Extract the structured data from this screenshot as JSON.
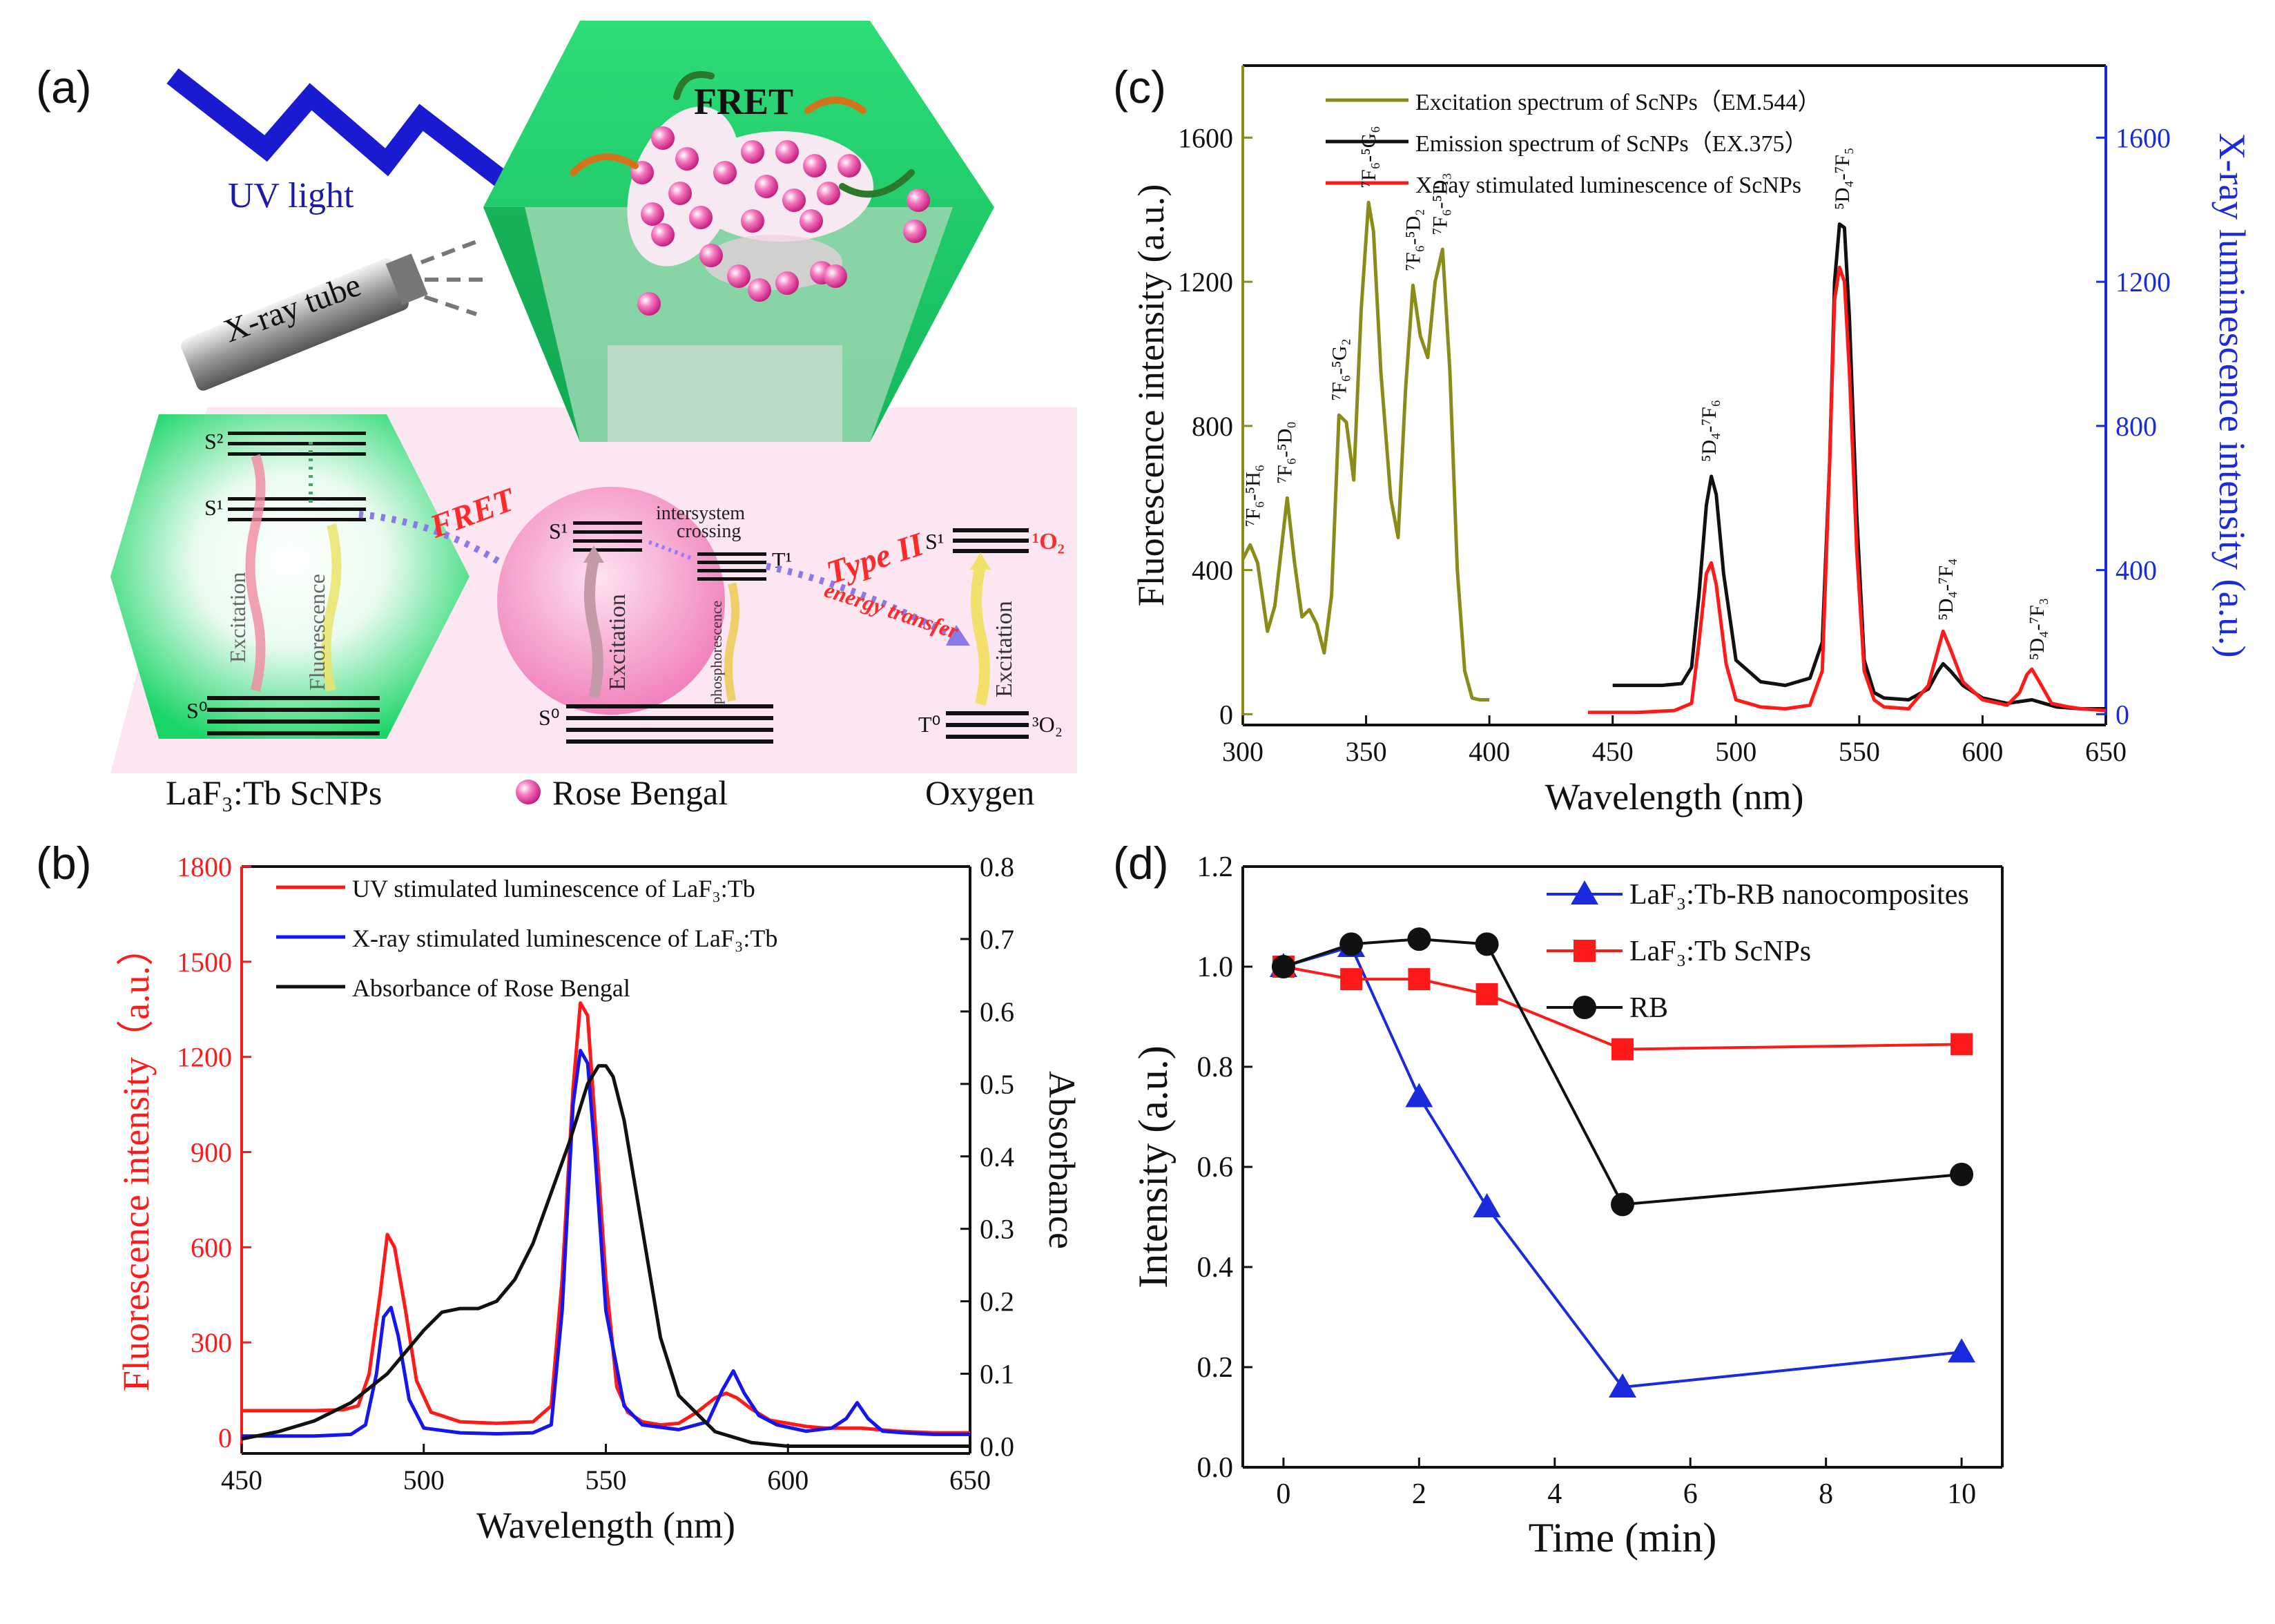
{
  "panel_labels": {
    "a": "(a)",
    "b": "(b)",
    "c": "(c)",
    "d": "(d)"
  },
  "diagram": {
    "uv_light": "UV light",
    "xray_tube": "X-ray tube",
    "fret_top": "FRET",
    "fret_arrow": "FRET",
    "s2": "S²",
    "s1": "S¹",
    "s0": "S⁰",
    "excitation": "Excitation",
    "fluorescence": "Fluorescence",
    "rb_s1": "S¹",
    "rb_t1": "T¹",
    "rb_s0": "S⁰",
    "isc_1": "intersystem",
    "isc_2": "crossing",
    "phosphorescence": "phosphorescence",
    "rb_excitation": "Excitation",
    "type2": "Type II",
    "energy_transfer": "energy transfer",
    "ox_s1": "S¹",
    "singlet_o2": "¹O₂",
    "ox_t0": "T⁰",
    "triplet_o2": "³O₂",
    "ox_excitation": "Excitation",
    "caption_laf3": "LaF₃:Tb ScNPs",
    "caption_rb": "Rose Bengal",
    "caption_oxygen": "Oxygen",
    "colors": {
      "green": "#1fd86a",
      "pink": "#f06fb0",
      "red": "#ff2a2a",
      "blue": "#1c1caa"
    }
  },
  "chart_data": [
    {
      "id": "b",
      "type": "line",
      "xlabel": "Wavelength (nm)",
      "ylabel": "Fluorescence intensity（a.u.）",
      "y2label": "Absorbance",
      "xlim": [
        450,
        650
      ],
      "ylim": [
        -50,
        1800
      ],
      "y2lim": [
        -0.01,
        0.8
      ],
      "xticks": [
        450,
        500,
        550,
        600,
        650
      ],
      "yticks": [
        0,
        300,
        600,
        900,
        1200,
        1500,
        1800
      ],
      "y2ticks": [
        0.0,
        0.1,
        0.2,
        0.3,
        0.4,
        0.5,
        0.6,
        0.7,
        0.8
      ],
      "series": [
        {
          "name": "UV stimulated luminescence of LaF₃:Tb",
          "color": "#ff1a1a",
          "axis": "left",
          "x": [
            450,
            470,
            478,
            482,
            485,
            488,
            490,
            492,
            495,
            498,
            502,
            510,
            520,
            530,
            535,
            538,
            541,
            543,
            545,
            547,
            550,
            553,
            556,
            560,
            565,
            570,
            575,
            580,
            583,
            586,
            590,
            595,
            600,
            605,
            610,
            615,
            620,
            625,
            630,
            640,
            650
          ],
          "y": [
            85,
            85,
            88,
            100,
            200,
            450,
            640,
            600,
            400,
            180,
            80,
            50,
            45,
            50,
            100,
            500,
            1100,
            1370,
            1330,
            1000,
            500,
            160,
            80,
            50,
            40,
            45,
            80,
            125,
            140,
            125,
            90,
            55,
            45,
            35,
            30,
            30,
            30,
            25,
            20,
            15,
            15
          ]
        },
        {
          "name": "X-ray stimulated luminescence of LaF₃:Tb",
          "color": "#1515ee",
          "axis": "left",
          "x": [
            450,
            470,
            480,
            484,
            487,
            489,
            491,
            493,
            496,
            500,
            510,
            520,
            530,
            535,
            538,
            541,
            543,
            545,
            547,
            550,
            555,
            560,
            570,
            578,
            582,
            585,
            588,
            592,
            597,
            605,
            612,
            616,
            619,
            622,
            626,
            632,
            640,
            650
          ],
          "y": [
            5,
            5,
            10,
            40,
            200,
            380,
            410,
            320,
            120,
            30,
            15,
            12,
            15,
            40,
            400,
            1050,
            1220,
            1180,
            900,
            400,
            100,
            40,
            25,
            50,
            150,
            210,
            140,
            70,
            40,
            20,
            30,
            60,
            110,
            60,
            20,
            15,
            10,
            10
          ]
        },
        {
          "name": "Absorbance of Rose Bengal",
          "color": "#111111",
          "axis": "right",
          "x": [
            450,
            460,
            470,
            480,
            490,
            500,
            505,
            510,
            515,
            520,
            525,
            530,
            535,
            540,
            545,
            548,
            550,
            552,
            555,
            560,
            565,
            570,
            580,
            590,
            600,
            610,
            620,
            650
          ],
          "y": [
            0.01,
            0.02,
            0.035,
            0.06,
            0.1,
            0.16,
            0.185,
            0.19,
            0.19,
            0.2,
            0.23,
            0.28,
            0.35,
            0.42,
            0.5,
            0.525,
            0.525,
            0.51,
            0.45,
            0.3,
            0.15,
            0.07,
            0.02,
            0.005,
            0.0,
            0.0,
            0.0,
            0.0
          ]
        }
      ]
    },
    {
      "id": "c",
      "type": "line",
      "xlabel": "Wavelength (nm)",
      "ylabel": "Fluorescence intensity (a.u.)",
      "y2label": "X-ray luminescence intensity (a.u.)",
      "xlim": [
        300,
        650
      ],
      "ylim": [
        -30,
        1800
      ],
      "y2lim": [
        -30,
        1800
      ],
      "xticks": [
        300,
        350,
        400,
        450,
        500,
        550,
        600,
        650
      ],
      "yticks": [
        0,
        400,
        800,
        1200,
        1600
      ],
      "y2ticks": [
        0,
        400,
        800,
        1200,
        1600
      ],
      "series": [
        {
          "name": "Excitation spectrum of ScNPs（EM.544）",
          "color": "#8b8b1a",
          "axis": "left",
          "x": [
            300,
            303,
            306,
            310,
            313,
            318,
            321,
            324,
            327,
            330,
            333,
            336,
            339,
            342,
            345,
            348,
            351,
            353,
            356,
            360,
            363,
            366,
            369,
            372,
            375,
            378,
            381,
            384,
            387,
            390,
            393,
            396,
            400
          ],
          "y": [
            430,
            470,
            420,
            230,
            300,
            600,
            420,
            270,
            290,
            250,
            170,
            330,
            830,
            810,
            650,
            1120,
            1420,
            1340,
            950,
            600,
            490,
            900,
            1190,
            1050,
            990,
            1200,
            1290,
            950,
            400,
            120,
            45,
            40,
            40
          ]
        },
        {
          "name": "Emission spectrum of ScNPs（EX.375）",
          "color": "#111111",
          "axis": "left",
          "x": [
            450,
            470,
            478,
            482,
            485,
            488,
            490,
            492,
            495,
            500,
            510,
            520,
            530,
            535,
            538,
            540,
            542,
            544,
            546,
            549,
            552,
            556,
            560,
            570,
            578,
            582,
            584,
            587,
            592,
            600,
            610,
            615,
            620,
            625,
            630,
            640,
            650
          ],
          "y": [
            80,
            80,
            85,
            130,
            330,
            580,
            660,
            610,
            390,
            150,
            90,
            80,
            100,
            200,
            700,
            1200,
            1360,
            1350,
            1100,
            550,
            150,
            60,
            45,
            40,
            70,
            120,
            140,
            120,
            80,
            45,
            30,
            35,
            40,
            30,
            20,
            15,
            15
          ]
        },
        {
          "name": "X-ray stimulated luminescence of ScNPs",
          "color": "#ff1a1a",
          "axis": "right",
          "x": [
            440,
            460,
            475,
            482,
            485,
            488,
            490,
            492,
            496,
            500,
            510,
            520,
            530,
            535,
            538,
            540,
            542,
            544,
            546,
            549,
            552,
            556,
            560,
            570,
            578,
            582,
            584,
            587,
            592,
            600,
            610,
            615,
            618,
            620,
            623,
            628,
            635,
            640,
            650
          ],
          "y": [
            5,
            5,
            10,
            30,
            200,
            390,
            420,
            360,
            140,
            40,
            20,
            15,
            25,
            120,
            700,
            1150,
            1240,
            1200,
            950,
            450,
            120,
            40,
            20,
            15,
            80,
            180,
            230,
            180,
            90,
            40,
            25,
            60,
            110,
            125,
            90,
            30,
            20,
            15,
            10
          ]
        }
      ],
      "annotations": [
        {
          "text": "⁷F₆-⁵H₆",
          "x": 304,
          "y": 520
        },
        {
          "text": "⁷F₆-⁵D₀",
          "x": 317,
          "y": 640
        },
        {
          "text": "⁷F₆-⁵G₂",
          "x": 339,
          "y": 870
        },
        {
          "text": "⁷F₆-⁵G₆",
          "x": 351,
          "y": 1460
        },
        {
          "text": "⁷F₆-⁵D₂",
          "x": 369,
          "y": 1230
        },
        {
          "text": "⁷F₆-⁵D₃",
          "x": 380,
          "y": 1330
        },
        {
          "text": "⁵D₄-⁷F₆",
          "x": 489,
          "y": 700
        },
        {
          "text": "⁵D₄-⁷F₅",
          "x": 543,
          "y": 1400
        },
        {
          "text": "⁵D₄-⁷F₄",
          "x": 585,
          "y": 260
        },
        {
          "text": "⁵D₄-⁷F₃",
          "x": 622,
          "y": 150
        }
      ]
    },
    {
      "id": "d",
      "type": "line",
      "xlabel": "Time (min)",
      "ylabel": "Intensity (a.u.)",
      "xlim": [
        -0.6,
        10.6
      ],
      "ylim": [
        0.0,
        1.2
      ],
      "xticks": [
        0,
        2,
        4,
        6,
        8,
        10
      ],
      "yticks": [
        0.0,
        0.2,
        0.4,
        0.6,
        0.8,
        1.0,
        1.2
      ],
      "series": [
        {
          "name": "LaF₃:Tb-RB nanocomposites",
          "color": "#1a2bdd",
          "marker": "triangle",
          "x": [
            0,
            1,
            2,
            3,
            5,
            10
          ],
          "y": [
            1.0,
            1.04,
            0.74,
            0.52,
            0.16,
            0.23
          ]
        },
        {
          "name": "LaF₃:Tb ScNPs",
          "color": "#ff1a1a",
          "marker": "square",
          "x": [
            0,
            1,
            2,
            3,
            5,
            10
          ],
          "y": [
            1.0,
            0.975,
            0.975,
            0.945,
            0.835,
            0.845
          ]
        },
        {
          "name": "RB",
          "color": "#111111",
          "marker": "circle",
          "x": [
            0,
            1,
            2,
            3,
            5,
            10
          ],
          "y": [
            1.0,
            1.045,
            1.055,
            1.045,
            0.525,
            0.585
          ]
        }
      ]
    }
  ]
}
